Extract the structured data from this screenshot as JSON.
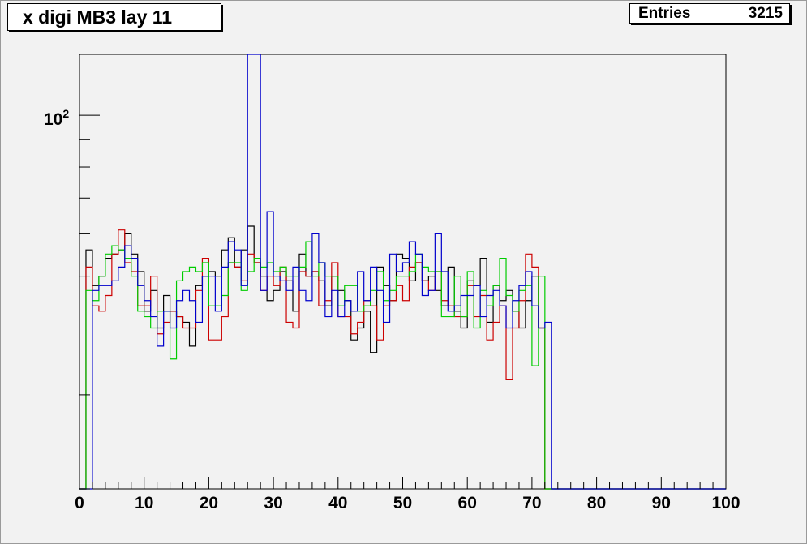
{
  "histogram": {
    "title": "x digi MB3 lay 11",
    "stats": {
      "label": "Entries",
      "value": "3215"
    }
  },
  "chart_data": {
    "type": "histogram-step",
    "title": "x digi MB3 lay 11",
    "xlabel": "",
    "ylabel": "",
    "xlim": [
      0,
      100
    ],
    "ylog": true,
    "ylim": [
      20,
      130
    ],
    "x_ticks": [
      0,
      10,
      20,
      30,
      40,
      50,
      60,
      70,
      80,
      90,
      100
    ],
    "y_tick_label": {
      "base": "10",
      "exponent": "2",
      "value": 100
    },
    "bins": {
      "start": 0,
      "width": 1,
      "count": 100
    },
    "series": [
      {
        "color": "#000000",
        "values": [
          0,
          56,
          48,
          50,
          54,
          55,
          56,
          60,
          55,
          51,
          43,
          47,
          40,
          46,
          43,
          42,
          41,
          37,
          48,
          50,
          51,
          50,
          56,
          59,
          52,
          56,
          62,
          53,
          50,
          45,
          47,
          51,
          49,
          43,
          55,
          50,
          51,
          49,
          44,
          50,
          47,
          45,
          38,
          40,
          43,
          36,
          52,
          48,
          45,
          55,
          54,
          49,
          53,
          49,
          50,
          47,
          44,
          52,
          43,
          40,
          49,
          48,
          54,
          41,
          48,
          45,
          47,
          43,
          40,
          45,
          50,
          40,
          0,
          0,
          0,
          0,
          0,
          0,
          0,
          0,
          0,
          0,
          0,
          0,
          0,
          0,
          0,
          0,
          0,
          0,
          0,
          0,
          0,
          0,
          0,
          0,
          0,
          0,
          0,
          0
        ]
      },
      {
        "color": "#cc0000",
        "values": [
          0,
          52,
          44,
          43,
          46,
          55,
          61,
          53,
          51,
          44,
          44,
          50,
          39,
          41,
          43,
          42,
          40,
          40,
          47,
          54,
          38,
          38,
          42,
          53,
          52,
          49,
          55,
          53,
          47,
          50,
          48,
          52,
          41,
          40,
          51,
          50,
          51,
          44,
          45,
          53,
          42,
          42,
          39,
          41,
          45,
          44,
          38,
          44,
          45,
          48,
          45,
          52,
          53,
          49,
          47,
          51,
          45,
          44,
          42,
          42,
          48,
          42,
          46,
          38,
          41,
          44,
          32,
          40,
          45,
          55,
          52,
          40,
          0,
          0,
          0,
          0,
          0,
          0,
          0,
          0,
          0,
          0,
          0,
          0,
          0,
          0,
          0,
          0,
          0,
          0,
          0,
          0,
          0,
          0,
          0,
          0,
          0,
          0,
          0,
          0
        ]
      },
      {
        "color": "#00cc00",
        "values": [
          0,
          47,
          45,
          50,
          55,
          57,
          56,
          54,
          50,
          43,
          42,
          40,
          43,
          43,
          35,
          49,
          51,
          52,
          51,
          53,
          44,
          44,
          46,
          53,
          53,
          47,
          51,
          54,
          52,
          53,
          51,
          52,
          50,
          50,
          52,
          58,
          50,
          53,
          50,
          50,
          44,
          48,
          48,
          43,
          44,
          47,
          51,
          45,
          47,
          50,
          50,
          51,
          55,
          52,
          51,
          51,
          42,
          42,
          50,
          42,
          51,
          40,
          47,
          44,
          48,
          54,
          46,
          43,
          47,
          48,
          34,
          50,
          0,
          0,
          0,
          0,
          0,
          0,
          0,
          0,
          0,
          0,
          0,
          0,
          0,
          0,
          0,
          0,
          0,
          0,
          0,
          0,
          0,
          0,
          0,
          0,
          0,
          0,
          0,
          0
        ]
      },
      {
        "color": "#0000cc",
        "values": [
          0,
          0,
          47,
          48,
          48,
          49,
          52,
          57,
          54,
          48,
          45,
          42,
          37,
          43,
          40,
          45,
          47,
          45,
          41,
          50,
          50,
          43,
          52,
          58,
          56,
          48,
          130,
          130,
          47,
          66,
          50,
          49,
          47,
          52,
          47,
          45,
          60,
          53,
          42,
          47,
          42,
          45,
          43,
          51,
          45,
          52,
          47,
          41,
          55,
          51,
          53,
          58,
          55,
          46,
          47,
          60,
          51,
          43,
          44,
          46,
          46,
          48,
          42,
          46,
          47,
          44,
          40,
          45,
          48,
          51,
          44,
          40,
          41,
          0,
          0,
          0,
          0,
          0,
          0,
          0,
          0,
          0,
          0,
          0,
          0,
          0,
          0,
          0,
          0,
          0,
          0,
          0,
          0,
          0,
          0,
          0,
          0,
          0,
          0,
          0
        ]
      }
    ]
  }
}
